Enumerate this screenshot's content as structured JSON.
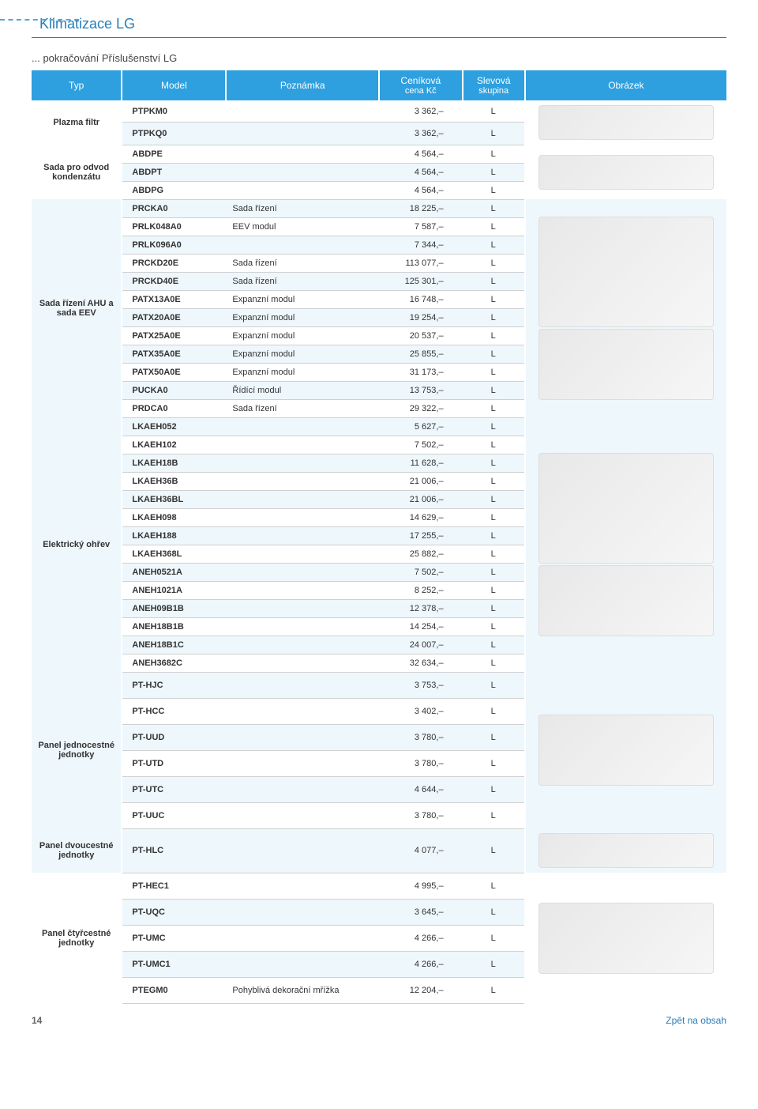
{
  "brand_title": "Klimatizace LG",
  "subtitle": "... pokračování Příslušenství LG",
  "page_number": "14",
  "back_link": "Zpět na obsah",
  "headers": {
    "typ": "Typ",
    "model": "Model",
    "note": "Poznámka",
    "price_l1": "Ceníková",
    "price_l2": "cena Kč",
    "grp_l1": "Slevová",
    "grp_l2": "skupina",
    "img": "Obrázek"
  },
  "colors": {
    "brand": "#2a7db8",
    "header_bg": "#2ea0df",
    "tint": "#eef7fc",
    "border": "#d0d0d0"
  },
  "groups": [
    {
      "typ": "Plazma filtr",
      "typ_tint": false,
      "img_span": 2,
      "rows": [
        {
          "model": "PTPKM0",
          "note": "",
          "price": "3 362,–",
          "grp": "L",
          "tint": false
        },
        {
          "model": "PTPKQ0",
          "note": "",
          "price": "3 362,–",
          "grp": "L",
          "tint": true
        }
      ]
    },
    {
      "typ": "Sada pro odvod kondenzátu",
      "typ_tint": false,
      "img_span": 3,
      "rows": [
        {
          "model": "ABDPE",
          "note": "",
          "price": "4 564,–",
          "grp": "L",
          "tint": false
        },
        {
          "model": "ABDPT",
          "note": "",
          "price": "4 564,–",
          "grp": "L",
          "tint": true
        },
        {
          "model": "ABDPG",
          "note": "",
          "price": "4 564,–",
          "grp": "L",
          "tint": false
        }
      ]
    },
    {
      "typ": "Sada řízení AHU a sada EEV",
      "typ_tint": true,
      "img_span": 12,
      "rows": [
        {
          "model": "PRCKA0",
          "note": "Sada řízení",
          "price": "18 225,–",
          "grp": "L",
          "tint": true
        },
        {
          "model": "PRLK048A0",
          "note": "EEV modul",
          "price": "7 587,–",
          "grp": "L",
          "tint": false
        },
        {
          "model": "PRLK096A0",
          "note": "",
          "price": "7 344,–",
          "grp": "L",
          "tint": true
        },
        {
          "model": "PRCKD20E",
          "note": "Sada řízení",
          "price": "113 077,–",
          "grp": "L",
          "tint": false
        },
        {
          "model": "PRCKD40E",
          "note": "Sada řízení",
          "price": "125 301,–",
          "grp": "L",
          "tint": true
        },
        {
          "model": "PATX13A0E",
          "note": "Expanzní modul",
          "price": "16 748,–",
          "grp": "L",
          "tint": false
        },
        {
          "model": "PATX20A0E",
          "note": "Expanzní modul",
          "price": "19 254,–",
          "grp": "L",
          "tint": true
        },
        {
          "model": "PATX25A0E",
          "note": "Expanzní modul",
          "price": "20 537,–",
          "grp": "L",
          "tint": false
        },
        {
          "model": "PATX35A0E",
          "note": "Expanzní modul",
          "price": "25 855,–",
          "grp": "L",
          "tint": true
        },
        {
          "model": "PATX50A0E",
          "note": "Expanzní modul",
          "price": "31 173,–",
          "grp": "L",
          "tint": false
        },
        {
          "model": "PUCKA0",
          "note": "Řídící modul",
          "price": "13 753,–",
          "grp": "L",
          "tint": true
        },
        {
          "model": "PRDCA0",
          "note": "Sada řízení",
          "price": "29 322,–",
          "grp": "L",
          "tint": false
        }
      ]
    },
    {
      "typ": "Elektrický ohřev",
      "typ_tint": false,
      "img_span": 14,
      "rows": [
        {
          "model": "LKAEH052",
          "note": "",
          "price": "5 627,–",
          "grp": "L",
          "tint": true
        },
        {
          "model": "LKAEH102",
          "note": "",
          "price": "7 502,–",
          "grp": "L",
          "tint": false
        },
        {
          "model": "LKAEH18B",
          "note": "",
          "price": "11 628,–",
          "grp": "L",
          "tint": true
        },
        {
          "model": "LKAEH36B",
          "note": "",
          "price": "21 006,–",
          "grp": "L",
          "tint": false
        },
        {
          "model": "LKAEH36BL",
          "note": "",
          "price": "21 006,–",
          "grp": "L",
          "tint": true
        },
        {
          "model": "LKAEH098",
          "note": "",
          "price": "14 629,–",
          "grp": "L",
          "tint": false
        },
        {
          "model": "LKAEH188",
          "note": "",
          "price": "17 255,–",
          "grp": "L",
          "tint": true
        },
        {
          "model": "LKAEH368L",
          "note": "",
          "price": "25 882,–",
          "grp": "L",
          "tint": false
        },
        {
          "model": "ANEH0521A",
          "note": "",
          "price": "7 502,–",
          "grp": "L",
          "tint": true
        },
        {
          "model": "ANEH1021A",
          "note": "",
          "price": "8 252,–",
          "grp": "L",
          "tint": false
        },
        {
          "model": "ANEH09B1B",
          "note": "",
          "price": "12 378,–",
          "grp": "L",
          "tint": true
        },
        {
          "model": "ANEH18B1B",
          "note": "",
          "price": "14 254,–",
          "grp": "L",
          "tint": false
        },
        {
          "model": "ANEH18B1C",
          "note": "",
          "price": "24 007,–",
          "grp": "L",
          "tint": true
        },
        {
          "model": "ANEH3682C",
          "note": "",
          "price": "32 634,–",
          "grp": "L",
          "tint": false
        }
      ]
    },
    {
      "typ": "Panel jednocestné jednotky",
      "typ_tint": false,
      "img_span": 6,
      "tall_rows": true,
      "rows": [
        {
          "model": "PT-HJC",
          "note": "",
          "price": "3 753,–",
          "grp": "L",
          "tint": true
        },
        {
          "model": "PT-HCC",
          "note": "",
          "price": "3 402,–",
          "grp": "L",
          "tint": false
        },
        {
          "model": "PT-UUD",
          "note": "",
          "price": "3 780,–",
          "grp": "L",
          "tint": true
        },
        {
          "model": "PT-UTD",
          "note": "",
          "price": "3 780,–",
          "grp": "L",
          "tint": false
        },
        {
          "model": "PT-UTC",
          "note": "",
          "price": "4 644,–",
          "grp": "L",
          "tint": true
        },
        {
          "model": "PT-UUC",
          "note": "",
          "price": "3 780,–",
          "grp": "L",
          "tint": false
        }
      ]
    },
    {
      "typ": "Panel dvoucestné jednotky",
      "typ_tint": true,
      "img_span": 1,
      "tall_rows": true,
      "rows": [
        {
          "model": "PT-HLC",
          "note": "",
          "price": "4 077,–",
          "grp": "L",
          "tint": true
        }
      ]
    },
    {
      "typ": "Panel čtyřcestné jednotky",
      "typ_tint": false,
      "img_span": 5,
      "tall_rows": true,
      "rows": [
        {
          "model": "PT-HEC1",
          "note": "",
          "price": "4 995,–",
          "grp": "L",
          "tint": false
        },
        {
          "model": "PT-UQC",
          "note": "",
          "price": "3 645,–",
          "grp": "L",
          "tint": true
        },
        {
          "model": "PT-UMC",
          "note": "",
          "price": "4 266,–",
          "grp": "L",
          "tint": false
        },
        {
          "model": "PT-UMC1",
          "note": "",
          "price": "4 266,–",
          "grp": "L",
          "tint": true
        },
        {
          "model": "PTEGM0",
          "note": "Pohyblivá dekorační mřížka",
          "price": "12 204,–",
          "grp": "L",
          "tint": false
        }
      ]
    }
  ]
}
